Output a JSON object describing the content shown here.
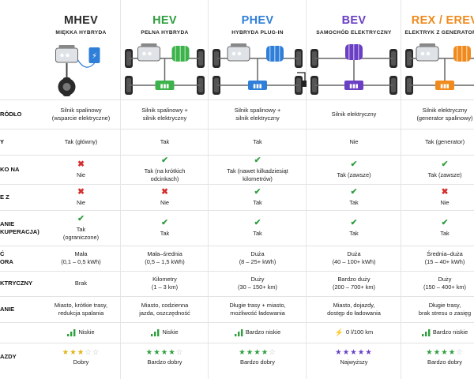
{
  "columns": [
    {
      "key": "mhev",
      "title": "MHEV",
      "subtitle": "MIĘKKA HYBRYDA",
      "color": "#2b2b2b",
      "accent": "#2f7fd9"
    },
    {
      "key": "hev",
      "title": "HEV",
      "subtitle": "PEŁNA HYBRYDA",
      "color": "#2e9e3e",
      "accent": "#3cb34a"
    },
    {
      "key": "phev",
      "title": "PHEV",
      "subtitle": "HYBRYDA PLUG-IN",
      "color": "#2f7fd9",
      "accent": "#2f7fd9"
    },
    {
      "key": "bev",
      "title": "BEV",
      "subtitle": "SAMOCHÓD ELEKTRYCZNY",
      "color": "#6a3fc4",
      "accent": "#6a3fc4"
    },
    {
      "key": "rex",
      "title": "REX / EREV",
      "subtitle": "ELEKTRYK Z GENERATOREM",
      "color": "#f08a1c",
      "accent": "#f08a1c"
    }
  ],
  "row_labels": [
    "RÓDŁO",
    "Y",
    "KO NA",
    "E Z",
    "ANIE\nKUPERACJA)",
    "Ć\nORA",
    "KTRYCZNY",
    "ANIE",
    "",
    "AZDY"
  ],
  "rows": [
    {
      "cells": [
        {
          "text": "Silnik spalinowy\n(wsparcie elektryczne)"
        },
        {
          "text": "Silnik spalinowy +\nsilnik elektryczny"
        },
        {
          "text": "Silnik spalinowy +\nsilnik elektryczny"
        },
        {
          "text": "Silnik elektryczny"
        },
        {
          "text": "Silnik elektryczny\n(generator spalinowy)"
        }
      ]
    },
    {
      "cells": [
        {
          "text": "Tak (główny)"
        },
        {
          "text": "Tak"
        },
        {
          "text": "Tak"
        },
        {
          "text": "Nie"
        },
        {
          "text": "Tak (generator)"
        }
      ]
    },
    {
      "cells": [
        {
          "icon": "no",
          "text": "Nie"
        },
        {
          "icon": "ok",
          "text": "Tak (na krótkich\nodcinkach)"
        },
        {
          "icon": "ok",
          "text": "Tak (nawet kilkadziesiąt\nkilometrów)"
        },
        {
          "icon": "ok",
          "text": "Tak (zawsze)"
        },
        {
          "icon": "ok",
          "text": "Tak (zawsze)"
        }
      ]
    },
    {
      "cells": [
        {
          "icon": "no",
          "text": "Nie"
        },
        {
          "icon": "no",
          "text": "Nie"
        },
        {
          "icon": "ok",
          "text": "Tak"
        },
        {
          "icon": "ok",
          "text": "Tak"
        },
        {
          "icon": "no",
          "text": "Nie"
        }
      ]
    },
    {
      "cells": [
        {
          "icon": "ok",
          "text": "Tak\n(ograniczone)"
        },
        {
          "icon": "ok",
          "text": "Tak"
        },
        {
          "icon": "ok",
          "text": "Tak"
        },
        {
          "icon": "ok",
          "text": "Tak"
        },
        {
          "icon": "ok",
          "text": "Tak"
        }
      ]
    },
    {
      "cells": [
        {
          "text": "Mała\n(0,1 – 0,5 kWh)"
        },
        {
          "text": "Mała–średnia\n(0,5 – 1,5 kWh)"
        },
        {
          "text": "Duża\n(8 – 25+ kWh)"
        },
        {
          "text": "Duża\n(40 – 100+ kWh)"
        },
        {
          "text": "Średnia–duża\n(15 – 40+ kWh)"
        }
      ]
    },
    {
      "cells": [
        {
          "text": "Brak"
        },
        {
          "text": "Kilometry\n(1 – 3 km)"
        },
        {
          "text": "Duży\n(30 – 150+ km)"
        },
        {
          "text": "Bardzo duży\n(200 – 700+ km)"
        },
        {
          "text": "Duży\n(150 – 400+ km)"
        }
      ]
    },
    {
      "cells": [
        {
          "text": "Miasto, krótkie trasy,\nredukcja spalania"
        },
        {
          "text": "Miasto, codzienna\njazda, oszczędność"
        },
        {
          "text": "Długie trasy + miasto,\nmożliwość ładowania"
        },
        {
          "text": "Miasto, dojazdy,\ndostęp do ładowania"
        },
        {
          "text": "Długie trasy,\nbrak stresu o zasięg"
        }
      ]
    },
    {
      "cells": [
        {
          "cost": "bars",
          "text": "Niskie"
        },
        {
          "cost": "bars",
          "text": "Niskie"
        },
        {
          "cost": "bars",
          "text": "Bardzo niskie"
        },
        {
          "cost": "bolt",
          "text": "0 l/100 km"
        },
        {
          "cost": "bars",
          "text": "Bardzo niskie"
        }
      ]
    },
    {
      "cells": [
        {
          "stars": 3,
          "color": "#e0b414",
          "text": "Dobry"
        },
        {
          "stars": 4,
          "color": "#2e9e3e",
          "text": "Bardzo dobry"
        },
        {
          "stars": 4,
          "color": "#2e9e3e",
          "text": "Bardzo dobry"
        },
        {
          "stars": 5,
          "color": "#6a3fc4",
          "text": "Najwyższy"
        },
        {
          "stars": 4,
          "color": "#2e9e3e",
          "text": "Bardzo dobry"
        }
      ]
    }
  ]
}
